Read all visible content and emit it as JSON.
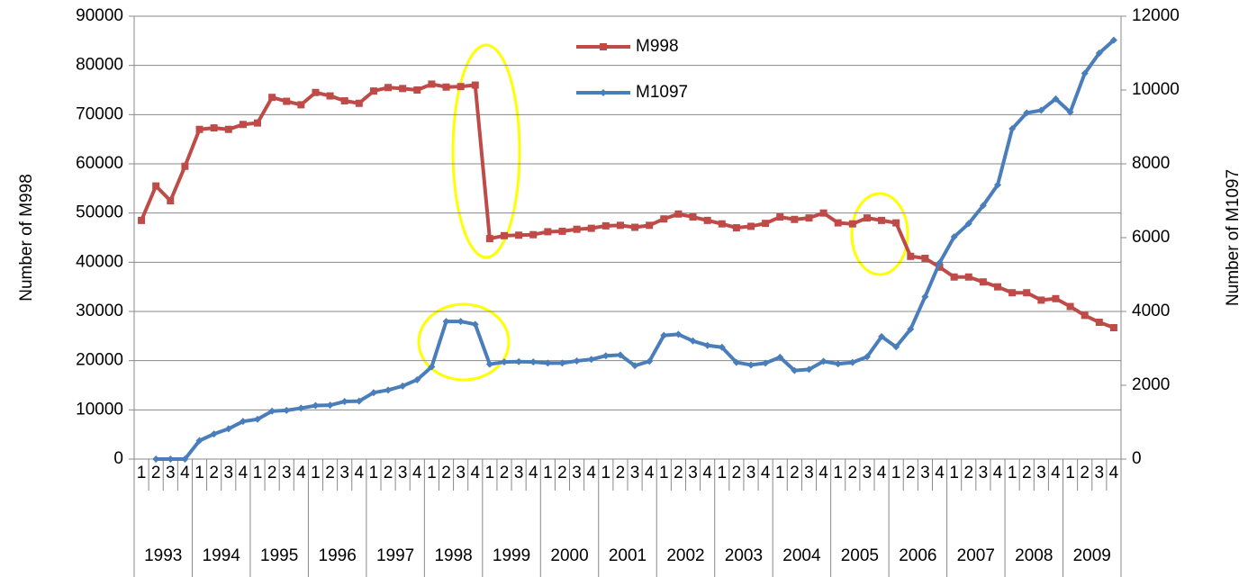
{
  "chart_data": {
    "type": "line",
    "categories": [
      "1",
      "2",
      "3",
      "4",
      "1",
      "2",
      "3",
      "4",
      "1",
      "2",
      "3",
      "4",
      "1",
      "2",
      "3",
      "4",
      "1",
      "2",
      "3",
      "4",
      "1",
      "2",
      "3",
      "4",
      "1",
      "2",
      "3",
      "4",
      "1",
      "2",
      "3",
      "4",
      "1",
      "2",
      "3",
      "4",
      "1",
      "2",
      "3",
      "4",
      "1",
      "2",
      "3",
      "4",
      "1",
      "2",
      "3",
      "4",
      "1",
      "2",
      "3",
      "4",
      "1",
      "2",
      "3",
      "4",
      "1",
      "2",
      "3",
      "4",
      "1",
      "2",
      "3",
      "4",
      "1",
      "2",
      "3",
      "4"
    ],
    "years": [
      "1993",
      "1994",
      "1995",
      "1996",
      "1997",
      "1998",
      "1999",
      "2000",
      "2001",
      "2002",
      "2003",
      "2004",
      "2005",
      "2006",
      "2007",
      "2008",
      "2009"
    ],
    "ylabel": "Number of M998",
    "y2label": "Number of M1097",
    "ylim": [
      0,
      90000
    ],
    "yticks": [
      0,
      10000,
      20000,
      30000,
      40000,
      50000,
      60000,
      70000,
      80000,
      90000
    ],
    "y2lim": [
      0,
      12000
    ],
    "y2ticks": [
      0,
      2000,
      4000,
      6000,
      8000,
      10000,
      12000
    ],
    "grid": true,
    "legend": "top",
    "series": [
      {
        "name": "M998",
        "color": "#be4b48",
        "marker": "square",
        "values": [
          48500,
          55500,
          52500,
          59500,
          67000,
          67300,
          67000,
          68000,
          68300,
          73500,
          72700,
          72000,
          74500,
          73800,
          72800,
          72300,
          74800,
          75500,
          75300,
          75000,
          76200,
          75600,
          75700,
          76000,
          44800,
          45400,
          45500,
          45600,
          46200,
          46300,
          46700,
          46900,
          47400,
          47500,
          47100,
          47500,
          48800,
          49800,
          49200,
          48500,
          47800,
          47000,
          47300,
          47900,
          49200,
          48700,
          49000,
          50000,
          48000,
          47800,
          49000,
          48500,
          48000,
          41200,
          40800,
          39000,
          37000,
          37000,
          36000,
          35000,
          33800,
          33800,
          32300,
          32600,
          31000,
          29200,
          27800,
          26700
        ]
      },
      {
        "name": "M1097",
        "color": "#4a7ebb",
        "marker": "diamond",
        "axis": "y2",
        "values": [
          null,
          0,
          0,
          0,
          500,
          680,
          820,
          1020,
          1080,
          1300,
          1320,
          1380,
          1450,
          1460,
          1560,
          1570,
          1800,
          1870,
          1980,
          2150,
          2500,
          3730,
          3730,
          3650,
          2570,
          2630,
          2640,
          2630,
          2600,
          2600,
          2660,
          2700,
          2800,
          2820,
          2530,
          2650,
          3350,
          3380,
          3200,
          3080,
          3030,
          2620,
          2550,
          2600,
          2760,
          2400,
          2430,
          2650,
          2580,
          2620,
          2770,
          3320,
          3040,
          3520,
          4400,
          5320,
          6020,
          6380,
          6870,
          7430,
          8950,
          9380,
          9450,
          9760,
          9400,
          10450,
          11000,
          11350
        ]
      }
    ]
  }
}
